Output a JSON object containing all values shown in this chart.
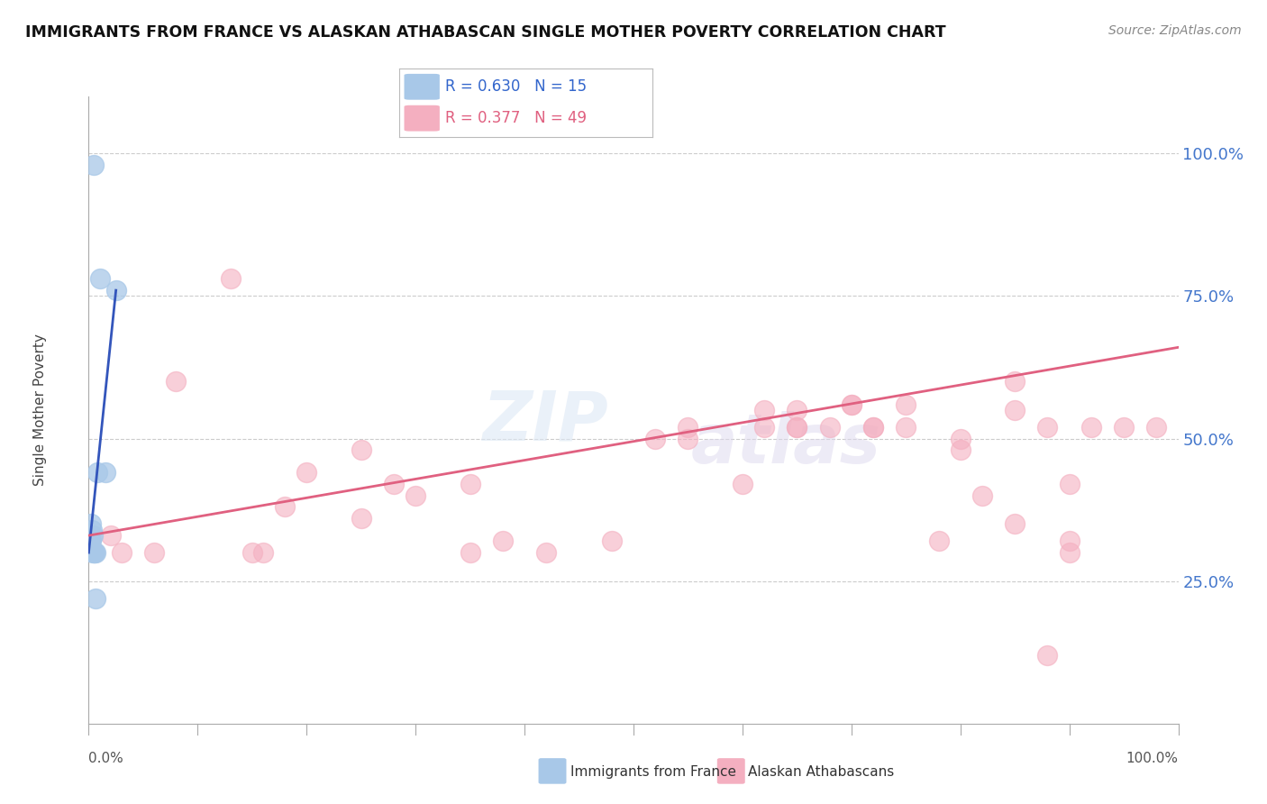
{
  "title": "IMMIGRANTS FROM FRANCE VS ALASKAN ATHABASCAN SINGLE MOTHER POVERTY CORRELATION CHART",
  "source": "Source: ZipAtlas.com",
  "ylabel": "Single Mother Poverty",
  "blue_R": 0.63,
  "blue_N": 15,
  "pink_R": 0.377,
  "pink_N": 49,
  "blue_color": "#a8c8e8",
  "pink_color": "#f4afc0",
  "blue_line_color": "#3355bb",
  "pink_line_color": "#e06080",
  "blue_label": "Immigrants from France",
  "pink_label": "Alaskan Athabascans",
  "blue_scatter_x": [
    0.5,
    1.0,
    2.5,
    0.8,
    1.5,
    0.3,
    0.4,
    0.6,
    0.2,
    0.15,
    0.25,
    0.35,
    0.45,
    0.55,
    0.65
  ],
  "blue_scatter_y": [
    98,
    78,
    76,
    44,
    44,
    34,
    33,
    30,
    32,
    32,
    35,
    30,
    30,
    30,
    22
  ],
  "pink_scatter_x": [
    2.0,
    3.0,
    8.0,
    13.0,
    20.0,
    25.0,
    28.0,
    35.0,
    38.0,
    42.0,
    48.0,
    52.0,
    55.0,
    62.0,
    65.0,
    70.0,
    72.0,
    75.0,
    78.0,
    82.0,
    85.0,
    88.0,
    90.0,
    92.0,
    95.0,
    98.0,
    60.0,
    68.0,
    72.0,
    80.0,
    85.0,
    90.0,
    6.0,
    16.0,
    30.0,
    18.0,
    25.0,
    55.0,
    65.0,
    70.0,
    85.0,
    65.0,
    75.0,
    80.0,
    90.0,
    15.0,
    35.0,
    62.0,
    88.0
  ],
  "pink_scatter_y": [
    33,
    30,
    60,
    78,
    44,
    48,
    42,
    42,
    32,
    30,
    32,
    50,
    52,
    55,
    52,
    56,
    52,
    56,
    32,
    40,
    35,
    52,
    30,
    52,
    52,
    52,
    42,
    52,
    52,
    48,
    55,
    32,
    30,
    30,
    40,
    38,
    36,
    50,
    55,
    56,
    60,
    52,
    52,
    50,
    42,
    30,
    30,
    52,
    12
  ],
  "ylim_min": 0,
  "ylim_max": 110,
  "xlim_min": 0,
  "xlim_max": 100,
  "ytick_values": [
    25,
    50,
    75,
    100
  ],
  "background_color": "#ffffff",
  "grid_color": "#cccccc",
  "blue_trend_x0": 0.0,
  "blue_trend_y0": 30.0,
  "blue_trend_x1": 2.5,
  "blue_trend_y1": 76.0,
  "pink_trend_x0": 0.0,
  "pink_trend_y0": 33.0,
  "pink_trend_x1": 100.0,
  "pink_trend_y1": 66.0
}
